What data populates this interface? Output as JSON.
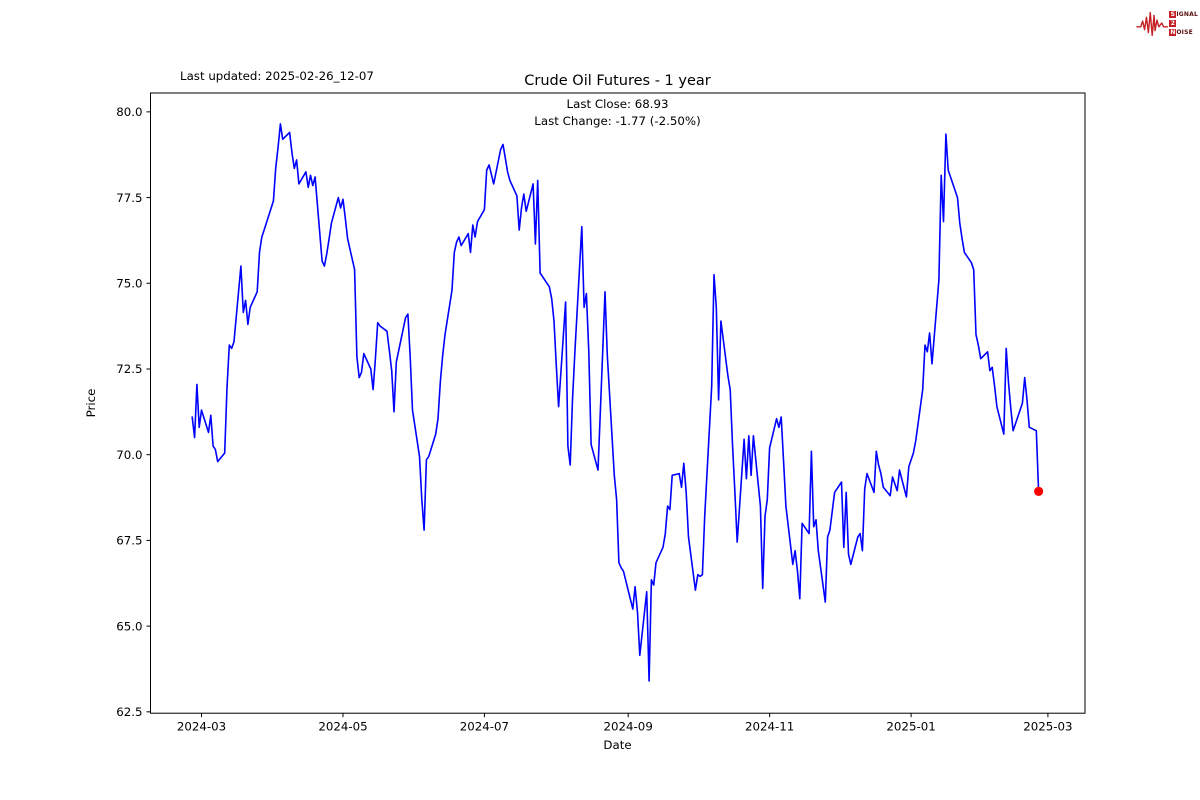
{
  "page": {
    "background": "#ffffff"
  },
  "header": {
    "last_updated": "Last updated: 2025-02-26_12-07"
  },
  "logo": {
    "word1_initial": "S",
    "word1_rest": "IGNAL",
    "word2": "2",
    "word3_initial": "N",
    "word3_rest": "OISE",
    "accent_color": "#c42127"
  },
  "chart": {
    "title": "Crude Oil Futures - 1 year",
    "subtitle_line1": "Last Close: 68.93",
    "subtitle_line2": "Last Change: -1.77 (-2.50%)",
    "xlabel": "Date",
    "ylabel": "Price",
    "line_color": "#0000ff",
    "dot_color": "#ff0000",
    "axis_color": "#000000",
    "chart_data": {
      "type": "line",
      "title": "Crude Oil Futures - 1 year",
      "xlabel": "Date",
      "ylabel": "Price",
      "grid": false,
      "legend": "none",
      "last_close": 68.93,
      "last_change": -1.77,
      "last_change_pct": "-2.50%",
      "y_ticks": [
        80.0,
        77.5,
        75.0,
        72.5,
        70.0,
        67.5,
        65.0,
        62.5
      ],
      "x_ticks": [
        {
          "label": "2024-03",
          "date": "2024-03-01"
        },
        {
          "label": "2024-05",
          "date": "2024-05-01"
        },
        {
          "label": "2024-07",
          "date": "2024-07-01"
        },
        {
          "label": "2024-09",
          "date": "2024-09-01"
        },
        {
          "label": "2024-11",
          "date": "2024-11-01"
        },
        {
          "label": "2025-01",
          "date": "2025-01-01"
        },
        {
          "label": "2025-03",
          "date": "2025-03-01"
        }
      ],
      "xlim": [
        "2024-02-08",
        "2025-03-17"
      ],
      "ylim": [
        62.46,
        80.55
      ],
      "series": [
        {
          "name": "Crude Oil Futures",
          "dates": [
            "2024-02-26",
            "2024-02-27",
            "2024-02-28",
            "2024-02-29",
            "2024-03-01",
            "2024-03-04",
            "2024-03-05",
            "2024-03-06",
            "2024-03-07",
            "2024-03-08",
            "2024-03-11",
            "2024-03-12",
            "2024-03-13",
            "2024-03-14",
            "2024-03-15",
            "2024-03-18",
            "2024-03-19",
            "2024-03-20",
            "2024-03-21",
            "2024-03-22",
            "2024-03-25",
            "2024-03-26",
            "2024-03-27",
            "2024-03-28",
            "2024-04-01",
            "2024-04-02",
            "2024-04-03",
            "2024-04-04",
            "2024-04-05",
            "2024-04-08",
            "2024-04-09",
            "2024-04-10",
            "2024-04-11",
            "2024-04-12",
            "2024-04-15",
            "2024-04-16",
            "2024-04-17",
            "2024-04-18",
            "2024-04-19",
            "2024-04-22",
            "2024-04-23",
            "2024-04-24",
            "2024-04-25",
            "2024-04-26",
            "2024-04-29",
            "2024-04-30",
            "2024-05-01",
            "2024-05-02",
            "2024-05-03",
            "2024-05-06",
            "2024-05-07",
            "2024-05-08",
            "2024-05-09",
            "2024-05-10",
            "2024-05-13",
            "2024-05-14",
            "2024-05-15",
            "2024-05-16",
            "2024-05-17",
            "2024-05-20",
            "2024-05-21",
            "2024-05-22",
            "2024-05-23",
            "2024-05-24",
            "2024-05-28",
            "2024-05-29",
            "2024-05-30",
            "2024-05-31",
            "2024-06-03",
            "2024-06-04",
            "2024-06-05",
            "2024-06-06",
            "2024-06-07",
            "2024-06-10",
            "2024-06-11",
            "2024-06-12",
            "2024-06-13",
            "2024-06-14",
            "2024-06-17",
            "2024-06-18",
            "2024-06-19",
            "2024-06-20",
            "2024-06-21",
            "2024-06-24",
            "2024-06-25",
            "2024-06-26",
            "2024-06-27",
            "2024-06-28",
            "2024-07-01",
            "2024-07-02",
            "2024-07-03",
            "2024-07-05",
            "2024-07-08",
            "2024-07-09",
            "2024-07-10",
            "2024-07-11",
            "2024-07-12",
            "2024-07-15",
            "2024-07-16",
            "2024-07-17",
            "2024-07-18",
            "2024-07-19",
            "2024-07-22",
            "2024-07-23",
            "2024-07-24",
            "2024-07-25",
            "2024-07-26",
            "2024-07-29",
            "2024-07-30",
            "2024-07-31",
            "2024-08-01",
            "2024-08-02",
            "2024-08-05",
            "2024-08-06",
            "2024-08-07",
            "2024-08-08",
            "2024-08-09",
            "2024-08-12",
            "2024-08-13",
            "2024-08-14",
            "2024-08-15",
            "2024-08-16",
            "2024-08-19",
            "2024-08-20",
            "2024-08-21",
            "2024-08-22",
            "2024-08-23",
            "2024-08-26",
            "2024-08-27",
            "2024-08-28",
            "2024-08-29",
            "2024-08-30",
            "2024-09-03",
            "2024-09-04",
            "2024-09-05",
            "2024-09-06",
            "2024-09-09",
            "2024-09-10",
            "2024-09-11",
            "2024-09-12",
            "2024-09-13",
            "2024-09-16",
            "2024-09-17",
            "2024-09-18",
            "2024-09-19",
            "2024-09-20",
            "2024-09-23",
            "2024-09-24",
            "2024-09-25",
            "2024-09-26",
            "2024-09-27",
            "2024-09-30",
            "2024-10-01",
            "2024-10-02",
            "2024-10-03",
            "2024-10-04",
            "2024-10-07",
            "2024-10-08",
            "2024-10-09",
            "2024-10-10",
            "2024-10-11",
            "2024-10-14",
            "2024-10-15",
            "2024-10-16",
            "2024-10-17",
            "2024-10-18",
            "2024-10-21",
            "2024-10-22",
            "2024-10-23",
            "2024-10-24",
            "2024-10-25",
            "2024-10-28",
            "2024-10-29",
            "2024-10-30",
            "2024-10-31",
            "2024-11-01",
            "2024-11-04",
            "2024-11-05",
            "2024-11-06",
            "2024-11-07",
            "2024-11-08",
            "2024-11-11",
            "2024-11-12",
            "2024-11-13",
            "2024-11-14",
            "2024-11-15",
            "2024-11-18",
            "2024-11-19",
            "2024-11-20",
            "2024-11-21",
            "2024-11-22",
            "2024-11-25",
            "2024-11-26",
            "2024-11-27",
            "2024-11-29",
            "2024-12-02",
            "2024-12-03",
            "2024-12-04",
            "2024-12-05",
            "2024-12-06",
            "2024-12-09",
            "2024-12-10",
            "2024-12-11",
            "2024-12-12",
            "2024-12-13",
            "2024-12-16",
            "2024-12-17",
            "2024-12-18",
            "2024-12-19",
            "2024-12-20",
            "2024-12-23",
            "2024-12-24",
            "2024-12-26",
            "2024-12-27",
            "2024-12-30",
            "2024-12-31",
            "2025-01-02",
            "2025-01-03",
            "2025-01-06",
            "2025-01-07",
            "2025-01-08",
            "2025-01-09",
            "2025-01-10",
            "2025-01-13",
            "2025-01-14",
            "2025-01-15",
            "2025-01-16",
            "2025-01-17",
            "2025-01-21",
            "2025-01-22",
            "2025-01-23",
            "2025-01-24",
            "2025-01-27",
            "2025-01-28",
            "2025-01-29",
            "2025-01-30",
            "2025-01-31",
            "2025-02-03",
            "2025-02-04",
            "2025-02-05",
            "2025-02-06",
            "2025-02-07",
            "2025-02-10",
            "2025-02-11",
            "2025-02-12",
            "2025-02-13",
            "2025-02-14",
            "2025-02-18",
            "2025-02-19",
            "2025-02-20",
            "2025-02-21",
            "2025-02-24",
            "2025-02-25"
          ],
          "prices": [
            71.1,
            70.5,
            72.05,
            70.8,
            71.3,
            70.65,
            71.15,
            70.25,
            70.15,
            69.8,
            70.05,
            71.95,
            73.2,
            73.1,
            73.3,
            75.5,
            74.15,
            74.5,
            73.8,
            74.3,
            74.75,
            75.9,
            76.35,
            76.55,
            77.4,
            78.35,
            78.95,
            79.65,
            79.2,
            79.4,
            78.8,
            78.35,
            78.6,
            77.9,
            78.25,
            77.8,
            78.15,
            77.85,
            78.1,
            75.65,
            75.5,
            75.85,
            76.3,
            76.75,
            77.5,
            77.2,
            77.45,
            76.9,
            76.3,
            75.4,
            72.85,
            72.25,
            72.4,
            72.95,
            72.5,
            71.9,
            72.8,
            73.85,
            73.75,
            73.6,
            73.05,
            72.45,
            71.25,
            72.7,
            74.0,
            74.1,
            72.85,
            71.3,
            69.95,
            68.7,
            67.8,
            69.85,
            69.95,
            70.6,
            71.05,
            72.15,
            72.9,
            73.5,
            74.8,
            75.9,
            76.2,
            76.35,
            76.1,
            76.45,
            75.9,
            76.7,
            76.35,
            76.8,
            77.15,
            78.3,
            78.45,
            77.9,
            78.9,
            79.05,
            78.65,
            78.25,
            78.0,
            77.55,
            76.55,
            77.2,
            77.6,
            77.1,
            77.9,
            76.15,
            78.0,
            75.3,
            75.2,
            74.9,
            74.55,
            73.9,
            72.6,
            71.4,
            74.45,
            70.25,
            69.7,
            71.6,
            73.0,
            76.65,
            74.3,
            74.7,
            73.0,
            70.3,
            69.55,
            71.3,
            73.0,
            74.75,
            72.9,
            69.4,
            68.7,
            66.85,
            66.7,
            66.6,
            65.5,
            66.15,
            65.4,
            64.15,
            66.0,
            63.4,
            66.35,
            66.2,
            66.85,
            67.3,
            67.7,
            68.5,
            68.4,
            69.4,
            69.45,
            69.05,
            69.75,
            68.9,
            67.6,
            66.05,
            66.5,
            66.45,
            66.5,
            68.2,
            72.0,
            75.25,
            74.3,
            71.6,
            73.9,
            72.3,
            71.9,
            70.3,
            68.9,
            67.45,
            70.45,
            69.3,
            70.55,
            69.4,
            70.55,
            68.5,
            66.1,
            68.2,
            68.7,
            70.2,
            71.05,
            70.8,
            71.1,
            69.85,
            68.5,
            66.8,
            67.2,
            66.6,
            65.8,
            68.0,
            67.7,
            70.1,
            67.9,
            68.1,
            67.2,
            65.7,
            67.6,
            67.8,
            68.9,
            69.2,
            67.3,
            68.9,
            67.1,
            66.8,
            67.6,
            67.7,
            67.2,
            69.0,
            69.45,
            68.9,
            70.1,
            69.7,
            69.45,
            69.05,
            68.8,
            69.35,
            68.95,
            69.55,
            68.77,
            69.65,
            70.05,
            70.4,
            71.9,
            73.2,
            73.0,
            73.55,
            72.65,
            75.1,
            78.15,
            76.8,
            79.35,
            78.3,
            77.5,
            76.75,
            76.3,
            75.9,
            75.6,
            75.4,
            73.5,
            73.2,
            72.8,
            73.0,
            72.45,
            72.55,
            72.0,
            71.4,
            70.6,
            73.1,
            72.1,
            71.35,
            70.7,
            71.5,
            72.25,
            71.6,
            70.8,
            70.7,
            68.93
          ]
        }
      ],
      "last_point_marker": {
        "date": "2025-02-25",
        "price": 68.93,
        "color": "#ff0000"
      }
    }
  }
}
